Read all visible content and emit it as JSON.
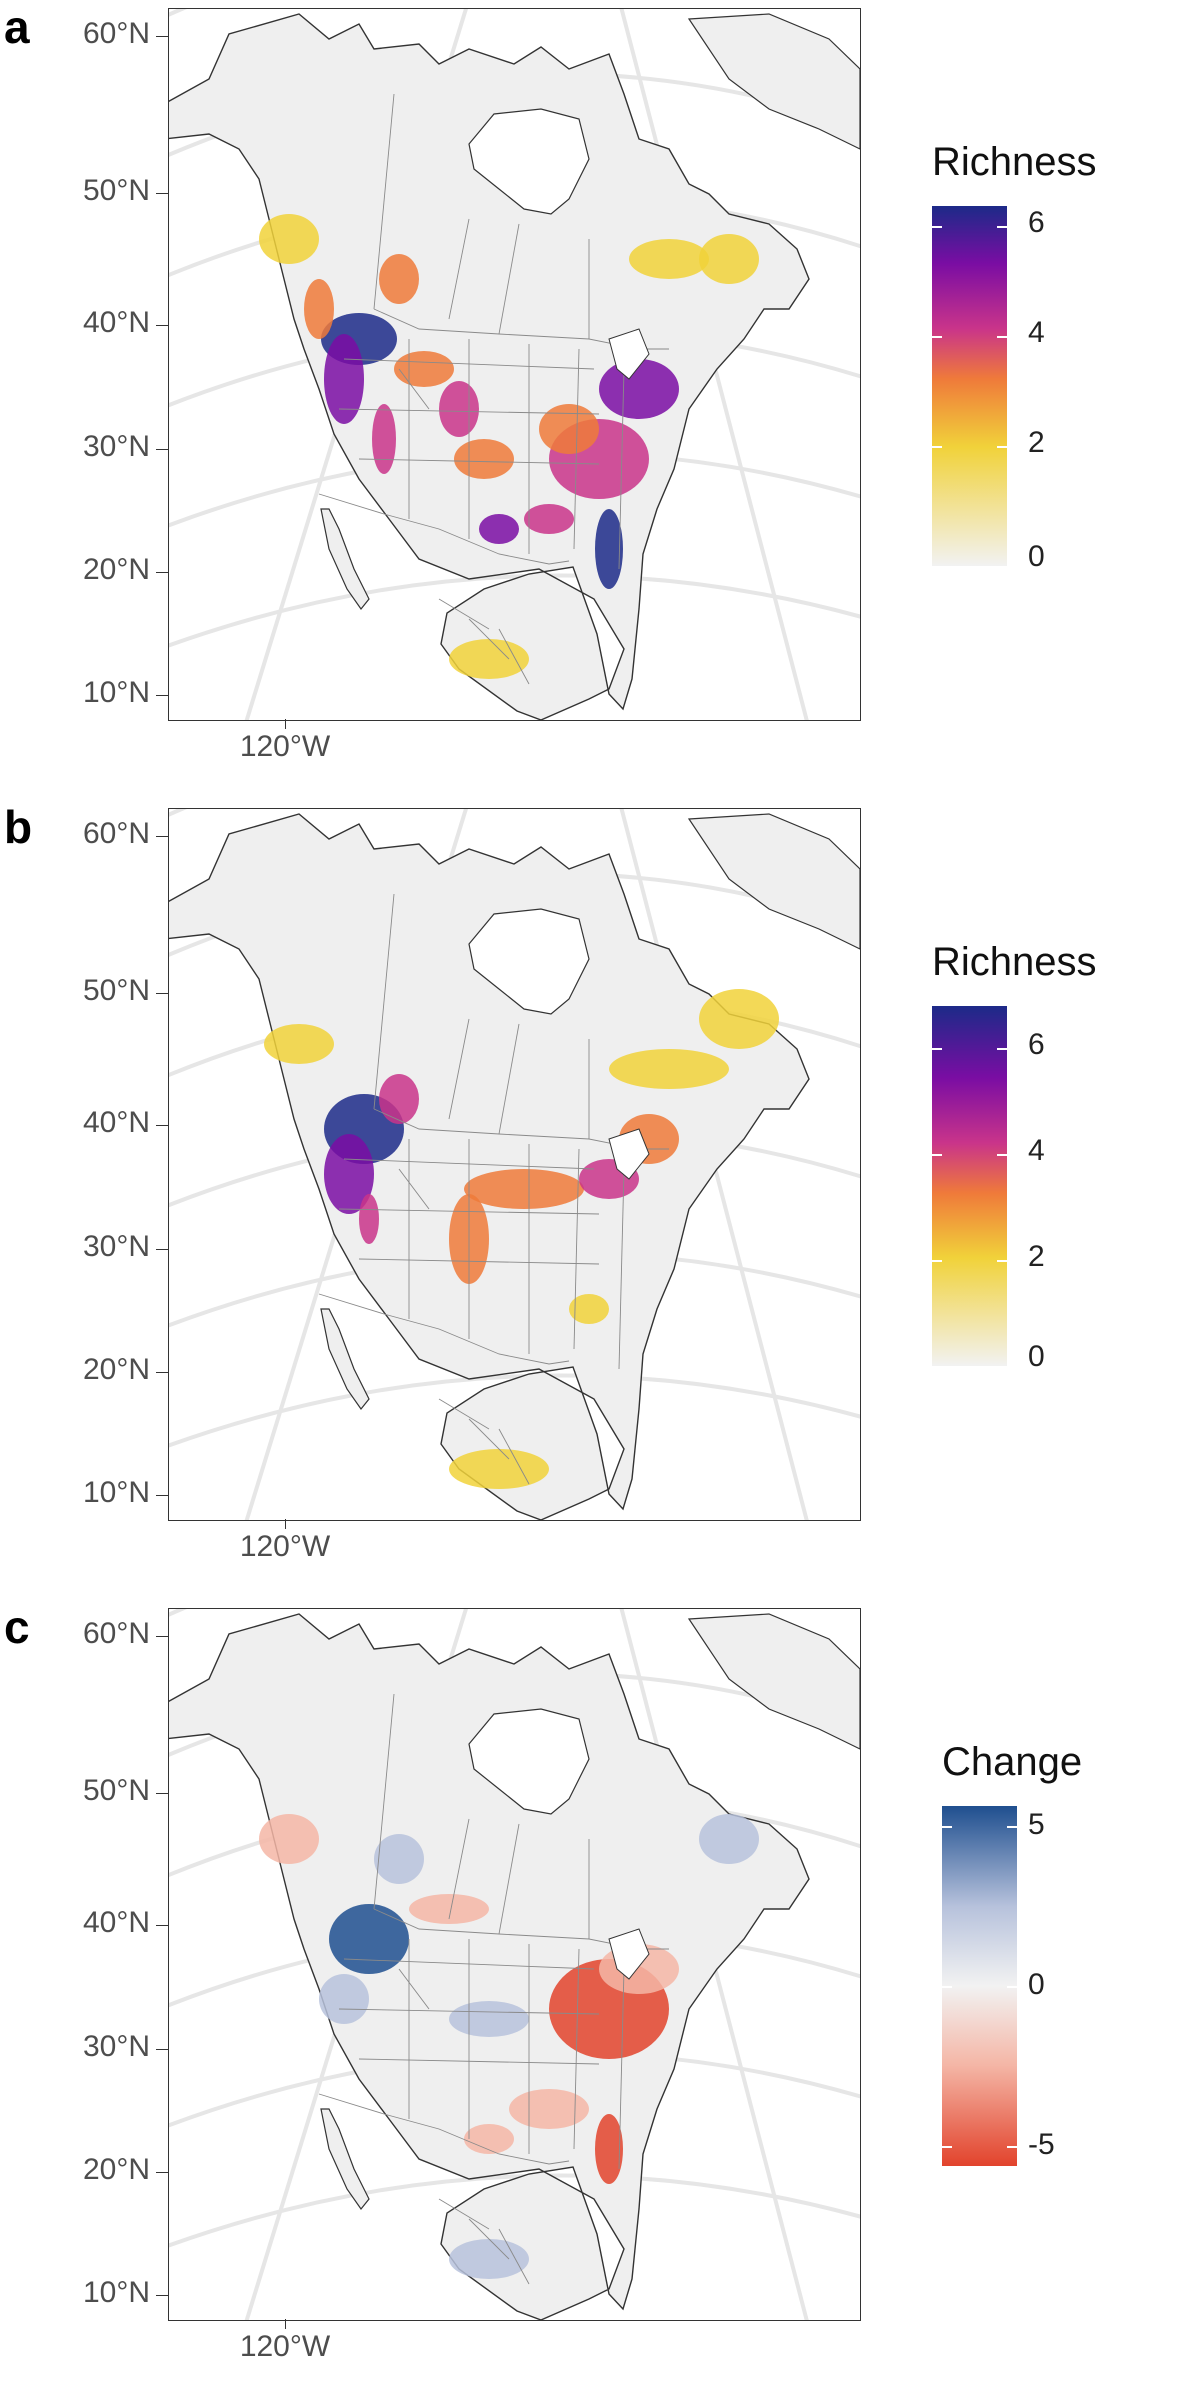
{
  "panels": [
    {
      "letter": "a",
      "legend_title": "Richness",
      "legend_ticks": [
        "6",
        "4",
        "2",
        "0"
      ],
      "legend_type": "richness"
    },
    {
      "letter": "b",
      "legend_title": "Richness",
      "legend_ticks": [
        "6",
        "4",
        "2",
        "0"
      ],
      "legend_type": "richness"
    },
    {
      "letter": "c",
      "legend_title": "Change",
      "legend_ticks": [
        "5",
        "0",
        "-5"
      ],
      "legend_type": "change"
    }
  ],
  "axes": {
    "lat_labels": [
      "60°N",
      "50°N",
      "40°N",
      "30°N",
      "20°N",
      "10°N"
    ],
    "lon_label": "120°W"
  },
  "colors": {
    "richness_scale": [
      "#f2f2f2",
      "#f1d23a",
      "#ef7a3a",
      "#c9348a",
      "#7a0da3",
      "#1c2a88"
    ],
    "change_scale": [
      "#e2432c",
      "#f4b6a6",
      "#f2f2f2",
      "#b7c2dc",
      "#1f4f8f"
    ],
    "land": "#efefef",
    "border": "#333333",
    "graticule": "#e6e6e6"
  }
}
